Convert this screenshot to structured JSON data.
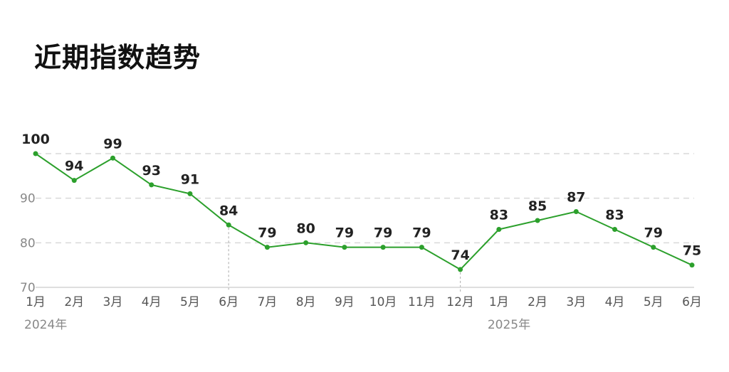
{
  "title": "近期指数趋势",
  "colors": {
    "line": "#2ca02c",
    "grid": "#d9d9d9"
  },
  "chart_data": {
    "type": "line",
    "title": "近期指数趋势",
    "categories": [
      "1月",
      "2月",
      "3月",
      "4月",
      "5月",
      "6月",
      "7月",
      "8月",
      "9月",
      "10月",
      "11月",
      "12月",
      "1月",
      "2月",
      "3月",
      "4月",
      "5月",
      "6月"
    ],
    "series": [
      {
        "values": [
          100,
          94,
          99,
          93,
          91,
          84,
          79,
          80,
          79,
          79,
          79,
          74,
          83,
          85,
          87,
          83,
          79,
          75
        ]
      }
    ],
    "year_labels": [
      {
        "index": 0,
        "label": "2024年"
      },
      {
        "index": 12,
        "label": "2025年"
      }
    ],
    "y_ticks": [
      70,
      80,
      90
    ],
    "ylim": [
      70,
      100
    ],
    "marked_categories": [
      5,
      11
    ],
    "grid": true,
    "xlabel": "",
    "ylabel": ""
  }
}
